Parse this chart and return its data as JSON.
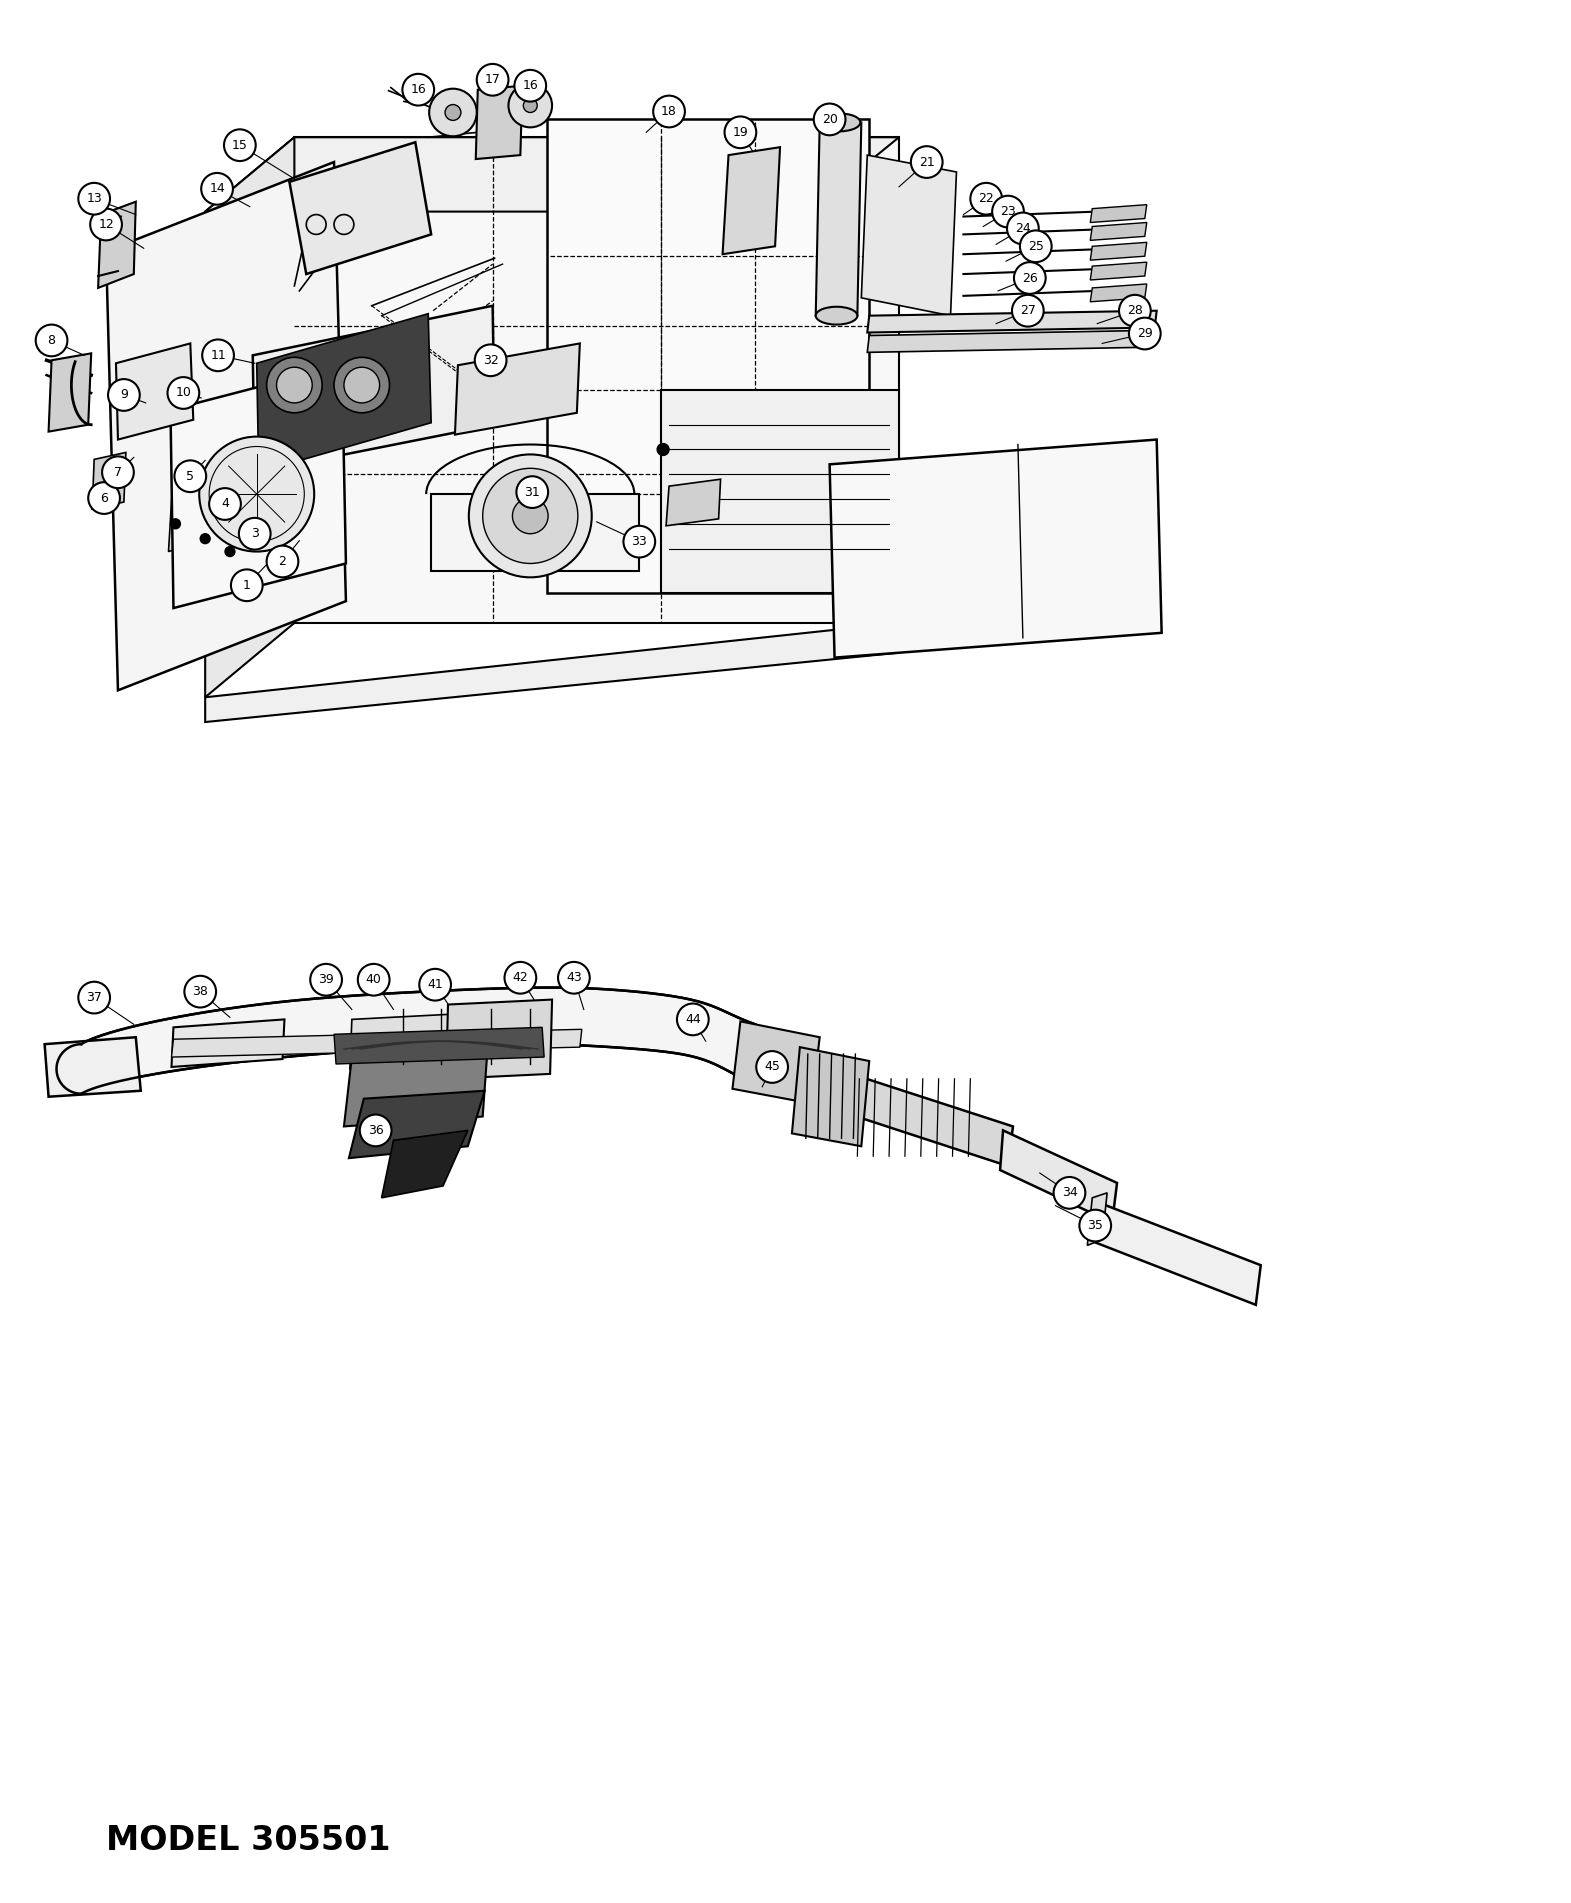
{
  "title": "MODEL 305501",
  "background_color": "#ffffff",
  "line_color": "#000000",
  "figsize": [
    15.71,
    19.03
  ],
  "dpi": 100,
  "model_text": "MODEL 305501",
  "upper_callouts": [
    [
      1,
      242,
      582,
      265,
      558
    ],
    [
      2,
      278,
      558,
      295,
      537
    ],
    [
      3,
      250,
      530,
      268,
      512
    ],
    [
      4,
      220,
      500,
      238,
      485
    ],
    [
      5,
      185,
      472,
      200,
      456
    ],
    [
      6,
      98,
      494,
      115,
      478
    ],
    [
      7,
      112,
      468,
      128,
      453
    ],
    [
      8,
      45,
      335,
      78,
      350
    ],
    [
      9,
      118,
      390,
      140,
      398
    ],
    [
      10,
      178,
      388,
      196,
      393
    ],
    [
      11,
      213,
      350,
      250,
      358
    ],
    [
      12,
      100,
      218,
      138,
      242
    ],
    [
      13,
      88,
      192,
      130,
      208
    ],
    [
      14,
      212,
      182,
      245,
      200
    ],
    [
      15,
      235,
      138,
      295,
      175
    ],
    [
      16,
      415,
      82,
      445,
      98
    ],
    [
      17,
      490,
      72,
      510,
      90
    ],
    [
      16,
      528,
      78,
      512,
      90
    ],
    [
      18,
      668,
      104,
      645,
      125
    ],
    [
      19,
      740,
      125,
      755,
      148
    ],
    [
      20,
      830,
      112,
      838,
      135
    ],
    [
      21,
      928,
      155,
      900,
      180
    ],
    [
      22,
      988,
      192,
      965,
      208
    ],
    [
      23,
      1010,
      205,
      985,
      220
    ],
    [
      24,
      1025,
      222,
      998,
      238
    ],
    [
      25,
      1038,
      240,
      1008,
      255
    ],
    [
      26,
      1032,
      272,
      1000,
      285
    ],
    [
      27,
      1030,
      305,
      998,
      318
    ],
    [
      28,
      1138,
      305,
      1100,
      318
    ],
    [
      29,
      1148,
      328,
      1105,
      338
    ],
    [
      31,
      530,
      488,
      530,
      465
    ],
    [
      32,
      488,
      355,
      475,
      372
    ],
    [
      33,
      638,
      538,
      595,
      518
    ]
  ],
  "lower_callouts": [
    [
      37,
      88,
      998,
      128,
      1025
    ],
    [
      38,
      195,
      992,
      225,
      1018
    ],
    [
      39,
      322,
      980,
      348,
      1010
    ],
    [
      40,
      370,
      980,
      390,
      1010
    ],
    [
      41,
      432,
      985,
      452,
      1015
    ],
    [
      42,
      518,
      978,
      538,
      1010
    ],
    [
      43,
      572,
      978,
      582,
      1010
    ],
    [
      44,
      692,
      1020,
      705,
      1042
    ],
    [
      45,
      772,
      1068,
      762,
      1088
    ],
    [
      34,
      1072,
      1195,
      1042,
      1175
    ],
    [
      35,
      1098,
      1228,
      1058,
      1208
    ],
    [
      36,
      372,
      1132,
      395,
      1112
    ]
  ]
}
